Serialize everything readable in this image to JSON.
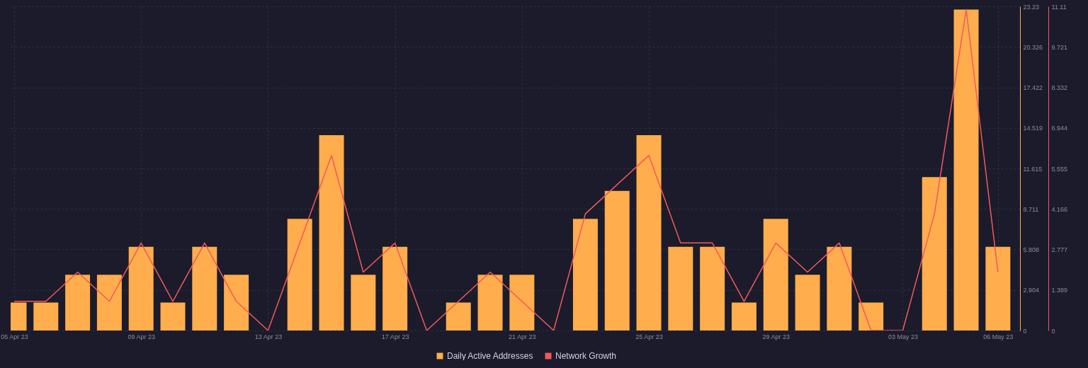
{
  "chart_data": {
    "type": "bar",
    "x": [
      "--04-05",
      "--04-06",
      "--04-07",
      "--04-08",
      "--04-09",
      "--04-10",
      "--04-11",
      "--04-12",
      "--04-13",
      "--04-14",
      "--04-15",
      "--04-16",
      "--04-17",
      "--04-18",
      "--04-19",
      "--04-20",
      "--04-21",
      "--04-22",
      "--04-23",
      "--04-24",
      "--04-25",
      "--04-26",
      "--04-27",
      "--04-28",
      "--04-29",
      "--04-30",
      "--05-01",
      "--05-02",
      "--05-03",
      "--05-04",
      "--05-05",
      "--05-06"
    ],
    "series": [
      {
        "name": "Daily Active Addresses",
        "color": "#ffad4d",
        "values": [
          2,
          2,
          4,
          4,
          6,
          2,
          6,
          4,
          0,
          8,
          14,
          4,
          6,
          0,
          2,
          4,
          4,
          0,
          8,
          10,
          14,
          6,
          6,
          2,
          8,
          4,
          6,
          2,
          0,
          11,
          23,
          6
        ]
      },
      {
        "name": "Network Growth",
        "type": "line",
        "axis": "y2",
        "color": "#f05a5a",
        "values": [
          1,
          1,
          2,
          1,
          3,
          1,
          3,
          1,
          0,
          3,
          6,
          2,
          3,
          0,
          1,
          2,
          1,
          0,
          4,
          5,
          6,
          3,
          3,
          1,
          3,
          2,
          3,
          0,
          0,
          4,
          11,
          2
        ]
      }
    ],
    "xlim": [
      "--04-05",
      "--05-06T14:00"
    ],
    "xticks": [
      {
        "value": "--04-05",
        "label": "05 Apr 23"
      },
      {
        "value": "--04-09",
        "label": "09 Apr 23"
      },
      {
        "value": "--04-13",
        "label": "13 Apr 23"
      },
      {
        "value": "--04-17",
        "label": "17 Apr 23"
      },
      {
        "value": "--04-21",
        "label": "21 Apr 23"
      },
      {
        "value": "--04-25",
        "label": "25 Apr 23"
      },
      {
        "value": "--04-29",
        "label": "29 Apr 23"
      },
      {
        "value": "--05-03",
        "label": "03 May 23"
      },
      {
        "value": "--05-06",
        "label": "06 May 23"
      }
    ],
    "ylim": [
      0,
      23.23
    ],
    "yticks": [
      0,
      2.904,
      5.808,
      8.711,
      11.615,
      14.519,
      17.422,
      20.326,
      23.23
    ],
    "y2lim": [
      0,
      11.11
    ],
    "y2ticks": [
      0,
      1.389,
      2.777,
      4.166,
      5.555,
      6.944,
      8.332,
      9.721,
      11.11
    ],
    "grid": true,
    "legend": "bottom"
  }
}
